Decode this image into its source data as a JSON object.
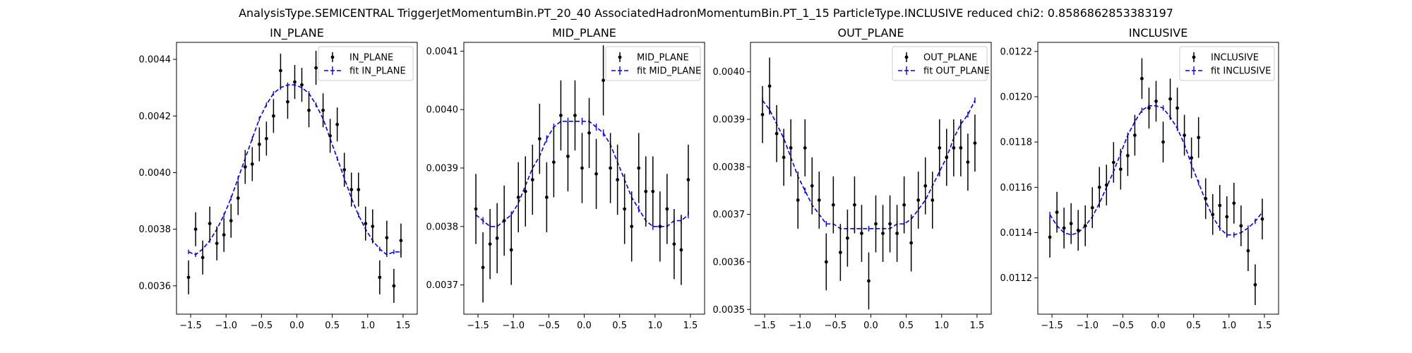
{
  "figure": {
    "suptitle": "AnalysisType.SEMICENTRAL TriggerJetMomentumBin.PT_20_40 AssociatedHadronMomentumBin.PT_1_15 ParticleType.INCLUSIVE reduced chi2: 0.8586862853383197"
  },
  "colors": {
    "data": "#000000",
    "fit": "#0000ff",
    "axes": "#000000",
    "background": "#ffffff"
  },
  "chart_data": [
    {
      "type": "scatter",
      "title": "IN_PLANE",
      "xlabel": "",
      "ylabel": "",
      "xlim": [
        -1.7,
        1.7
      ],
      "ylim": [
        0.0035,
        0.00446
      ],
      "xticks": [
        -1.5,
        -1.0,
        -0.5,
        0.0,
        0.5,
        1.0,
        1.5
      ],
      "xtick_labels": [
        "−1.5",
        "−1.0",
        "−0.5",
        "0.0",
        "0.5",
        "1.0",
        "1.5"
      ],
      "yticks": [
        0.0036,
        0.0038,
        0.004,
        0.0042,
        0.0044
      ],
      "ytick_labels": [
        "0.0036",
        "0.0038",
        "0.0040",
        "0.0042",
        "0.0044"
      ],
      "legend": {
        "position": "upper right",
        "entries": [
          "IN_PLANE",
          "fit IN_PLANE"
        ]
      },
      "series": [
        {
          "name": "IN_PLANE",
          "kind": "errorbar",
          "x": [
            -1.53,
            -1.43,
            -1.33,
            -1.23,
            -1.13,
            -1.03,
            -0.93,
            -0.83,
            -0.73,
            -0.63,
            -0.53,
            -0.43,
            -0.33,
            -0.23,
            -0.13,
            -0.03,
            0.07,
            0.17,
            0.27,
            0.37,
            0.47,
            0.57,
            0.67,
            0.77,
            0.87,
            0.97,
            1.07,
            1.17,
            1.27,
            1.37,
            1.47
          ],
          "y": [
            0.00363,
            0.0038,
            0.0037,
            0.00382,
            0.00375,
            0.00378,
            0.00383,
            0.00391,
            0.00402,
            0.00403,
            0.0041,
            0.00412,
            0.0042,
            0.00436,
            0.00425,
            0.00432,
            0.00431,
            0.00422,
            0.00437,
            0.00422,
            0.00413,
            0.00417,
            0.00401,
            0.00394,
            0.00394,
            0.00382,
            0.00381,
            0.00363,
            0.00377,
            0.0036,
            0.00376
          ],
          "yerr": [
            6e-05,
            6e-05,
            6e-05,
            6e-05,
            6e-05,
            6e-05,
            6e-05,
            6e-05,
            6e-05,
            6e-05,
            6e-05,
            6e-05,
            6e-05,
            6e-05,
            6e-05,
            6e-05,
            6e-05,
            6e-05,
            6e-05,
            6e-05,
            6e-05,
            6e-05,
            6e-05,
            6e-05,
            6e-05,
            6e-05,
            6e-05,
            6e-05,
            6e-05,
            6e-05,
            6e-05
          ]
        },
        {
          "name": "fit IN_PLANE",
          "kind": "fit",
          "x": [
            -1.53,
            -1.43,
            -1.33,
            -1.23,
            -1.13,
            -1.03,
            -0.93,
            -0.83,
            -0.73,
            -0.63,
            -0.53,
            -0.43,
            -0.33,
            -0.23,
            -0.13,
            -0.03,
            0.07,
            0.17,
            0.27,
            0.37,
            0.47,
            0.57,
            0.67,
            0.77,
            0.87,
            0.97,
            1.07,
            1.17,
            1.27,
            1.37,
            1.47
          ],
          "y": [
            0.00372,
            0.00371,
            0.00373,
            0.00376,
            0.0038,
            0.00385,
            0.00391,
            0.00398,
            0.00405,
            0.00412,
            0.00419,
            0.00424,
            0.00428,
            0.0043,
            0.00431,
            0.00431,
            0.0043,
            0.00428,
            0.00424,
            0.00419,
            0.00412,
            0.00405,
            0.00398,
            0.00391,
            0.00385,
            0.0038,
            0.00376,
            0.00373,
            0.00371,
            0.00372,
            0.00372
          ],
          "yerr": [
            8e-06,
            8e-06,
            8e-06,
            8e-06,
            8e-06,
            8e-06,
            8e-06,
            8e-06,
            8e-06,
            8e-06,
            8e-06,
            8e-06,
            8e-06,
            8e-06,
            8e-06,
            8e-06,
            8e-06,
            8e-06,
            8e-06,
            8e-06,
            8e-06,
            8e-06,
            8e-06,
            8e-06,
            8e-06,
            8e-06,
            8e-06,
            8e-06,
            8e-06,
            8e-06,
            8e-06
          ]
        }
      ]
    },
    {
      "type": "scatter",
      "title": "MID_PLANE",
      "xlabel": "",
      "ylabel": "",
      "xlim": [
        -1.7,
        1.7
      ],
      "ylim": [
        0.00365,
        0.004115
      ],
      "xticks": [
        -1.5,
        -1.0,
        -0.5,
        0.0,
        0.5,
        1.0,
        1.5
      ],
      "xtick_labels": [
        "−1.5",
        "−1.0",
        "−0.5",
        "0.0",
        "0.5",
        "1.0",
        "1.5"
      ],
      "yticks": [
        0.0037,
        0.0038,
        0.0039,
        0.004,
        0.0041
      ],
      "ytick_labels": [
        "0.0037",
        "0.0038",
        "0.0039",
        "0.0040",
        "0.0041"
      ],
      "legend": {
        "position": "upper right",
        "entries": [
          "MID_PLANE",
          "fit MID_PLANE"
        ]
      },
      "series": [
        {
          "name": "MID_PLANE",
          "kind": "errorbar",
          "x": [
            -1.53,
            -1.43,
            -1.33,
            -1.23,
            -1.13,
            -1.03,
            -0.93,
            -0.83,
            -0.73,
            -0.63,
            -0.53,
            -0.43,
            -0.33,
            -0.23,
            -0.13,
            -0.03,
            0.07,
            0.17,
            0.27,
            0.37,
            0.47,
            0.57,
            0.67,
            0.77,
            0.87,
            0.97,
            1.07,
            1.17,
            1.27,
            1.37,
            1.47
          ],
          "y": [
            0.00383,
            0.00373,
            0.00377,
            0.00378,
            0.00381,
            0.00376,
            0.00385,
            0.00386,
            0.00388,
            0.00395,
            0.00385,
            0.00391,
            0.00399,
            0.00392,
            0.00399,
            0.0039,
            0.00396,
            0.00389,
            0.00405,
            0.0039,
            0.00388,
            0.00383,
            0.0038,
            0.0039,
            0.00386,
            0.00386,
            0.0038,
            0.00383,
            0.00377,
            0.00376,
            0.00388
          ],
          "yerr": [
            6e-05,
            6e-05,
            6e-05,
            6e-05,
            6e-05,
            6e-05,
            6e-05,
            6e-05,
            6e-05,
            6e-05,
            6e-05,
            6e-05,
            6e-05,
            6e-05,
            6e-05,
            6e-05,
            6e-05,
            6e-05,
            6e-05,
            6e-05,
            6e-05,
            6e-05,
            6e-05,
            6e-05,
            6e-05,
            6e-05,
            6e-05,
            6e-05,
            6e-05,
            6e-05,
            6e-05
          ]
        },
        {
          "name": "fit MID_PLANE",
          "kind": "fit",
          "x": [
            -1.53,
            -1.43,
            -1.33,
            -1.23,
            -1.13,
            -1.03,
            -0.93,
            -0.83,
            -0.73,
            -0.63,
            -0.53,
            -0.43,
            -0.33,
            -0.23,
            -0.13,
            -0.03,
            0.07,
            0.17,
            0.27,
            0.37,
            0.47,
            0.57,
            0.67,
            0.77,
            0.87,
            0.97,
            1.07,
            1.17,
            1.27,
            1.37,
            1.47
          ],
          "y": [
            0.00382,
            0.00381,
            0.0038,
            0.0038,
            0.00381,
            0.00382,
            0.00384,
            0.00387,
            0.0039,
            0.00392,
            0.00395,
            0.00397,
            0.00398,
            0.00398,
            0.00398,
            0.00398,
            0.00398,
            0.00397,
            0.00396,
            0.00394,
            0.00391,
            0.00388,
            0.00385,
            0.00383,
            0.00381,
            0.0038,
            0.0038,
            0.0038,
            0.00381,
            0.00381,
            0.00382
          ],
          "yerr": [
            6e-06,
            6e-06,
            6e-06,
            6e-06,
            6e-06,
            6e-06,
            6e-06,
            6e-06,
            6e-06,
            6e-06,
            6e-06,
            6e-06,
            6e-06,
            6e-06,
            6e-06,
            6e-06,
            6e-06,
            6e-06,
            6e-06,
            6e-06,
            6e-06,
            6e-06,
            6e-06,
            6e-06,
            6e-06,
            6e-06,
            6e-06,
            6e-06,
            6e-06,
            6e-06,
            6e-06
          ]
        }
      ]
    },
    {
      "type": "scatter",
      "title": "OUT_PLANE",
      "xlabel": "",
      "ylabel": "",
      "xlim": [
        -1.7,
        1.7
      ],
      "ylim": [
        0.00349,
        0.004062
      ],
      "xticks": [
        -1.5,
        -1.0,
        -0.5,
        0.0,
        0.5,
        1.0,
        1.5
      ],
      "xtick_labels": [
        "−1.5",
        "−1.0",
        "−0.5",
        "0.0",
        "0.5",
        "1.0",
        "1.5"
      ],
      "yticks": [
        0.0035,
        0.0036,
        0.0037,
        0.0038,
        0.0039,
        0.004
      ],
      "ytick_labels": [
        "0.0035",
        "0.0036",
        "0.0037",
        "0.0038",
        "0.0039",
        "0.0040"
      ],
      "legend": {
        "position": "upper right",
        "entries": [
          "OUT_PLANE",
          "fit OUT_PLANE"
        ]
      },
      "series": [
        {
          "name": "OUT_PLANE",
          "kind": "errorbar",
          "x": [
            -1.53,
            -1.43,
            -1.33,
            -1.23,
            -1.13,
            -1.03,
            -0.93,
            -0.83,
            -0.73,
            -0.63,
            -0.53,
            -0.43,
            -0.33,
            -0.23,
            -0.13,
            -0.03,
            0.07,
            0.17,
            0.27,
            0.37,
            0.47,
            0.57,
            0.67,
            0.77,
            0.87,
            0.97,
            1.07,
            1.17,
            1.27,
            1.37,
            1.47
          ],
          "y": [
            0.00391,
            0.00397,
            0.00387,
            0.00382,
            0.00384,
            0.00373,
            0.00384,
            0.00376,
            0.00373,
            0.0036,
            0.00372,
            0.00362,
            0.00365,
            0.00372,
            0.00366,
            0.00356,
            0.00368,
            0.00366,
            0.00368,
            0.00366,
            0.00372,
            0.00364,
            0.00373,
            0.00376,
            0.00373,
            0.00384,
            0.00382,
            0.00384,
            0.00384,
            0.00381,
            0.00385
          ],
          "yerr": [
            6e-05,
            6e-05,
            6e-05,
            6e-05,
            6e-05,
            6e-05,
            6e-05,
            6e-05,
            6e-05,
            6e-05,
            6e-05,
            6e-05,
            6e-05,
            6e-05,
            6e-05,
            6e-05,
            6e-05,
            6e-05,
            6e-05,
            6e-05,
            6e-05,
            6e-05,
            6e-05,
            6e-05,
            6e-05,
            6e-05,
            6e-05,
            6e-05,
            6e-05,
            6e-05,
            6e-05
          ]
        },
        {
          "name": "fit OUT_PLANE",
          "kind": "fit",
          "x": [
            -1.53,
            -1.43,
            -1.33,
            -1.23,
            -1.13,
            -1.03,
            -0.93,
            -0.83,
            -0.73,
            -0.63,
            -0.53,
            -0.43,
            -0.33,
            -0.23,
            -0.13,
            -0.03,
            0.07,
            0.17,
            0.27,
            0.37,
            0.47,
            0.57,
            0.67,
            0.77,
            0.87,
            0.97,
            1.07,
            1.17,
            1.27,
            1.37,
            1.47
          ],
          "y": [
            0.00394,
            0.00392,
            0.00389,
            0.00386,
            0.00382,
            0.00378,
            0.00375,
            0.00372,
            0.0037,
            0.00368,
            0.00368,
            0.00367,
            0.00367,
            0.00367,
            0.00367,
            0.00367,
            0.00367,
            0.00367,
            0.00367,
            0.00368,
            0.00368,
            0.00369,
            0.00371,
            0.00373,
            0.00376,
            0.00379,
            0.00382,
            0.00386,
            0.00389,
            0.00391,
            0.00394
          ],
          "yerr": [
            6e-06,
            6e-06,
            6e-06,
            6e-06,
            6e-06,
            6e-06,
            6e-06,
            6e-06,
            6e-06,
            6e-06,
            6e-06,
            6e-06,
            6e-06,
            6e-06,
            6e-06,
            6e-06,
            6e-06,
            6e-06,
            6e-06,
            6e-06,
            6e-06,
            6e-06,
            6e-06,
            6e-06,
            6e-06,
            6e-06,
            6e-06,
            6e-06,
            6e-06,
            6e-06,
            6e-06
          ]
        }
      ]
    },
    {
      "type": "scatter",
      "title": "INCLUSIVE",
      "xlabel": "",
      "ylabel": "",
      "xlim": [
        -1.7,
        1.7
      ],
      "ylim": [
        0.01104,
        0.01224
      ],
      "xticks": [
        -1.5,
        -1.0,
        -0.5,
        0.0,
        0.5,
        1.0,
        1.5
      ],
      "xtick_labels": [
        "−1.5",
        "−1.0",
        "−0.5",
        "0.0",
        "0.5",
        "1.0",
        "1.5"
      ],
      "yticks": [
        0.0112,
        0.0114,
        0.0116,
        0.0118,
        0.012,
        0.0122
      ],
      "ytick_labels": [
        "0.0112",
        "0.0114",
        "0.0116",
        "0.0118",
        "0.0120",
        "0.0122"
      ],
      "legend": {
        "position": "upper right",
        "entries": [
          "INCLUSIVE",
          "fit INCLUSIVE"
        ]
      },
      "series": [
        {
          "name": "INCLUSIVE",
          "kind": "errorbar",
          "x": [
            -1.53,
            -1.43,
            -1.33,
            -1.23,
            -1.13,
            -1.03,
            -0.93,
            -0.83,
            -0.73,
            -0.63,
            -0.53,
            -0.43,
            -0.33,
            -0.23,
            -0.13,
            -0.03,
            0.07,
            0.17,
            0.27,
            0.37,
            0.47,
            0.57,
            0.67,
            0.77,
            0.87,
            0.97,
            1.07,
            1.17,
            1.27,
            1.37,
            1.47
          ],
          "y": [
            0.01138,
            0.01149,
            0.01142,
            0.01144,
            0.01141,
            0.01143,
            0.01151,
            0.0116,
            0.01161,
            0.01171,
            0.01168,
            0.01174,
            0.01183,
            0.01208,
            0.01195,
            0.01198,
            0.0118,
            0.01199,
            0.01195,
            0.01183,
            0.01173,
            0.01182,
            0.01155,
            0.01148,
            0.01152,
            0.01147,
            0.01153,
            0.01143,
            0.01132,
            0.01117,
            0.01146
          ],
          "yerr": [
            9e-05,
            9e-05,
            9e-05,
            9e-05,
            9e-05,
            9e-05,
            9e-05,
            9e-05,
            9e-05,
            9e-05,
            9e-05,
            9e-05,
            9e-05,
            9e-05,
            9e-05,
            9e-05,
            9e-05,
            9e-05,
            9e-05,
            9e-05,
            9e-05,
            9e-05,
            9e-05,
            9e-05,
            9e-05,
            9e-05,
            9e-05,
            9e-05,
            9e-05,
            9e-05,
            9e-05
          ]
        },
        {
          "name": "fit INCLUSIVE",
          "kind": "fit",
          "x": [
            -1.53,
            -1.43,
            -1.33,
            -1.23,
            -1.13,
            -1.03,
            -0.93,
            -0.83,
            -0.73,
            -0.63,
            -0.53,
            -0.43,
            -0.33,
            -0.23,
            -0.13,
            -0.03,
            0.07,
            0.17,
            0.27,
            0.37,
            0.47,
            0.57,
            0.67,
            0.77,
            0.87,
            0.97,
            1.07,
            1.17,
            1.27,
            1.37,
            1.47
          ],
          "y": [
            0.01148,
            0.01143,
            0.0114,
            0.01139,
            0.0114,
            0.01143,
            0.01147,
            0.01153,
            0.0116,
            0.01167,
            0.01175,
            0.01183,
            0.01189,
            0.01194,
            0.01196,
            0.01196,
            0.01195,
            0.01191,
            0.01186,
            0.01179,
            0.0117,
            0.01162,
            0.01154,
            0.01147,
            0.01142,
            0.01139,
            0.01139,
            0.0114,
            0.01142,
            0.01145,
            0.01149
          ],
          "yerr": [
            1.2e-05,
            1.2e-05,
            1.2e-05,
            1.2e-05,
            1.2e-05,
            1.2e-05,
            1.2e-05,
            1.2e-05,
            1.2e-05,
            1.2e-05,
            1.2e-05,
            1.2e-05,
            1.2e-05,
            1.2e-05,
            1.2e-05,
            1.2e-05,
            1.2e-05,
            1.2e-05,
            1.2e-05,
            1.2e-05,
            1.2e-05,
            1.2e-05,
            1.2e-05,
            1.2e-05,
            1.2e-05,
            1.2e-05,
            1.2e-05,
            1.2e-05,
            1.2e-05,
            1.2e-05,
            1.2e-05
          ]
        }
      ]
    }
  ]
}
